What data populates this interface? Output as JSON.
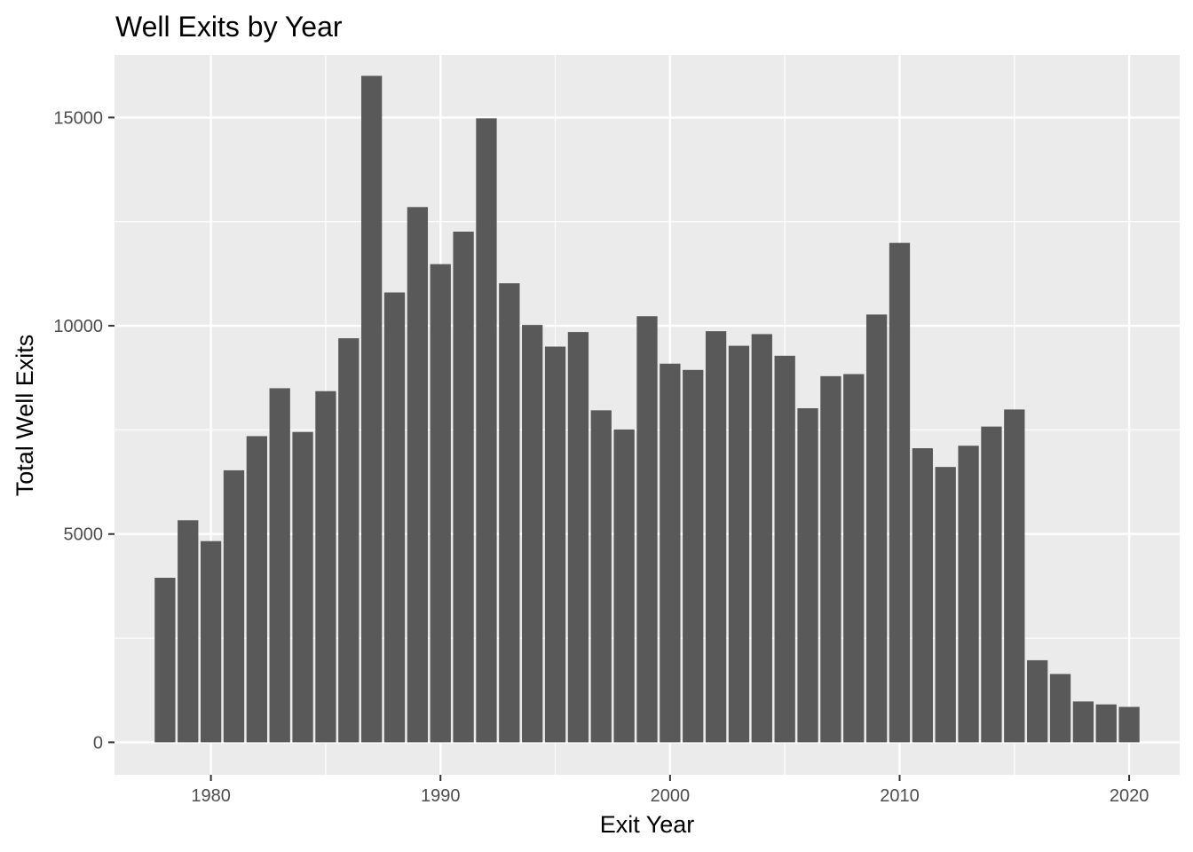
{
  "chart_data": {
    "type": "bar",
    "title": "Well Exits by Year",
    "xlabel": "Exit Year",
    "ylabel": "Total Well Exits",
    "x": [
      1978,
      1979,
      1980,
      1981,
      1982,
      1983,
      1984,
      1985,
      1986,
      1987,
      1988,
      1989,
      1990,
      1991,
      1992,
      1993,
      1994,
      1995,
      1996,
      1997,
      1998,
      1999,
      2000,
      2001,
      2002,
      2003,
      2004,
      2005,
      2006,
      2007,
      2008,
      2009,
      2010,
      2011,
      2012,
      2013,
      2014,
      2015,
      2016,
      2017,
      2018,
      2019,
      2020
    ],
    "values": [
      3950,
      5330,
      4830,
      6530,
      7350,
      8500,
      7450,
      8430,
      9700,
      16000,
      10800,
      12850,
      11480,
      12260,
      14980,
      11020,
      10020,
      9500,
      9850,
      7970,
      7510,
      10230,
      9090,
      8940,
      9870,
      9520,
      9800,
      9280,
      8020,
      8790,
      8840,
      10270,
      11990,
      7060,
      6610,
      7120,
      7580,
      7990,
      1970,
      1640,
      980,
      910,
      850
    ],
    "xlim": [
      1975.8,
      2022.2
    ],
    "ylim": [
      -780,
      16500
    ],
    "x_ticks": [
      1980,
      1990,
      2000,
      2010,
      2020
    ],
    "x_minor_ticks": [
      1975,
      1985,
      1995,
      2005,
      2015
    ],
    "y_ticks": [
      0,
      5000,
      10000,
      15000
    ],
    "y_minor_ticks": [
      2500,
      7500,
      12500
    ],
    "grid": true,
    "legend": "none",
    "colors": {
      "panel": "#ebebeb",
      "bar": "#595959",
      "grid": "#ffffff",
      "tick": "#333333"
    }
  }
}
